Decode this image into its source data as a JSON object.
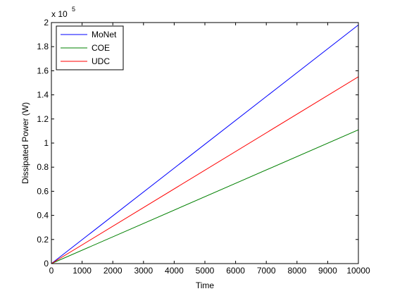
{
  "chart_data": {
    "type": "line",
    "title": "",
    "xlabel": "Time",
    "ylabel": "Dissipated Power (W)",
    "y_multiplier_label": "x 10",
    "y_multiplier_exponent": "5",
    "xlim": [
      0,
      10000
    ],
    "ylim": [
      0,
      2
    ],
    "x_ticks": [
      0,
      1000,
      2000,
      3000,
      4000,
      5000,
      6000,
      7000,
      8000,
      9000,
      10000
    ],
    "y_ticks": [
      0,
      0.2,
      0.4,
      0.6,
      0.8,
      1,
      1.2,
      1.4,
      1.6,
      1.8,
      2
    ],
    "x_tick_labels": [
      "0",
      "1000",
      "2000",
      "3000",
      "4000",
      "5000",
      "6000",
      "7000",
      "8000",
      "9000",
      "10000"
    ],
    "y_tick_labels": [
      "0",
      "0.2",
      "0.4",
      "0.6",
      "0.8",
      "1",
      "1.2",
      "1.4",
      "1.6",
      "1.8",
      "2"
    ],
    "grid": false,
    "legend_position": "top-left",
    "series": [
      {
        "name": "MoNet",
        "color": "#0000ff",
        "x": [
          0,
          10000
        ],
        "y": [
          0,
          1.98
        ]
      },
      {
        "name": "COE",
        "color": "#008000",
        "x": [
          0,
          10000
        ],
        "y": [
          0,
          1.11
        ]
      },
      {
        "name": "UDC",
        "color": "#ff0000",
        "x": [
          0,
          10000
        ],
        "y": [
          0,
          1.55
        ]
      }
    ]
  }
}
